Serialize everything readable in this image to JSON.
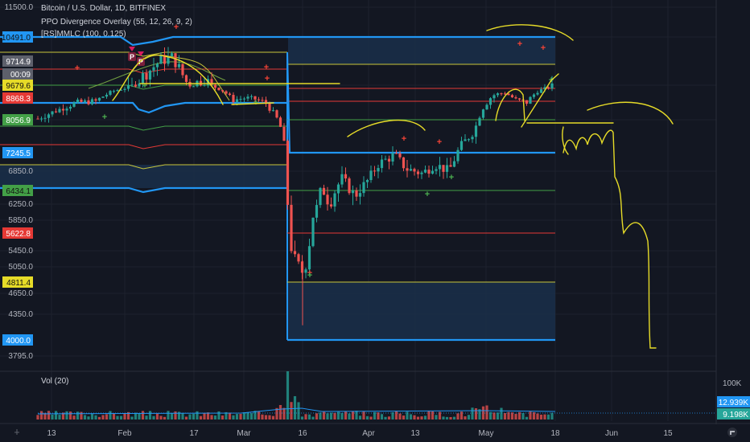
{
  "legend": {
    "title": "Bitcoin / U.S. Dollar, 1D, BITFINEX",
    "indicator1": "PPO Divergence Overlay (55, 12, 26, 9, 2)",
    "indicator2": "[RS]MMLC (100, 0.125)",
    "volume": "Vol (20)"
  },
  "colors": {
    "background": "#131722",
    "up": "#26a69a",
    "down": "#ef5350",
    "mm_blue": "#2196f3",
    "mm_yellow": "#c9c63a",
    "mm_red": "#e53935",
    "mm_green": "#43a047",
    "drawing": "#e6db28",
    "signal_plus_green": "#4caf50",
    "signal_plus_red": "#f44336",
    "signal_p": "#e91e63"
  },
  "chart_data": {
    "type": "candlestick",
    "symbol": "Bitcoin / U.S. Dollar",
    "timeframe": "1D",
    "exchange": "BITFINEX",
    "y_axis": {
      "min": 3600,
      "max": 11600,
      "ticks": [
        "11500.0",
        "10491.0",
        "9714.9",
        "00:09",
        "9679.6",
        "8868.3",
        "8056.9",
        "7245.5",
        "6850.0",
        "6434.1",
        "6250.0",
        "5850.0",
        "5622.8",
        "5450.0",
        "5050.0",
        "4811.4",
        "4650.0",
        "4350.0",
        "4000.0",
        "3795.0"
      ]
    },
    "x_axis": {
      "labels": [
        "13",
        "Feb",
        "17",
        "Mar",
        "16",
        "Apr",
        "13",
        "May",
        "18",
        "Jun",
        "15"
      ]
    },
    "price_labels": [
      {
        "value": "10491.0",
        "color": "#2196f3"
      },
      {
        "value": "9714.9",
        "color": "#5d606b"
      },
      {
        "value": "00:09",
        "color": "#5d606b"
      },
      {
        "value": "9679.6",
        "color": "#e6db28"
      },
      {
        "value": "8868.3",
        "color": "#e53935"
      },
      {
        "value": "8056.9",
        "color": "#43a047"
      },
      {
        "value": "7245.5",
        "color": "#2196f3"
      },
      {
        "value": "6434.1",
        "color": "#43a047"
      },
      {
        "value": "5622.8",
        "color": "#e53935"
      },
      {
        "value": "4811.4",
        "color": "#e6db28"
      },
      {
        "value": "4000.0",
        "color": "#2196f3"
      }
    ],
    "murrey_levels": [
      {
        "value": 10491.0,
        "color": "blue"
      },
      {
        "value": 9679.6,
        "color": "yellow"
      },
      {
        "value": 8868.3,
        "color": "red"
      },
      {
        "value": 8056.9,
        "color": "green"
      },
      {
        "value": 7245.5,
        "color": "blue"
      },
      {
        "value": 6434.1,
        "color": "green"
      },
      {
        "value": 5622.8,
        "color": "red"
      },
      {
        "value": 4811.4,
        "color": "yellow"
      },
      {
        "value": 4000.0,
        "color": "blue"
      }
    ],
    "volume_axis": {
      "max_label": "100K",
      "labels": [
        "12.939K",
        "9.198K"
      ]
    }
  }
}
